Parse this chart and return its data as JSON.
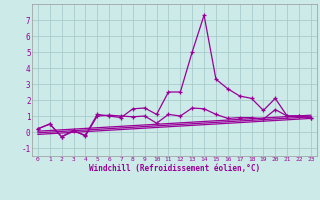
{
  "xlabel": "Windchill (Refroidissement éolien,°C)",
  "background_color": "#cceae8",
  "grid_color": "#aacccc",
  "line_color": "#990099",
  "xlim": [
    -0.5,
    23.5
  ],
  "ylim": [
    -1.5,
    8.0
  ],
  "yticks": [
    -1,
    0,
    1,
    2,
    3,
    4,
    5,
    6,
    7
  ],
  "xticks": [
    0,
    1,
    2,
    3,
    4,
    5,
    6,
    7,
    8,
    9,
    10,
    11,
    12,
    13,
    14,
    15,
    16,
    17,
    18,
    19,
    20,
    21,
    22,
    23
  ],
  "series1_x": [
    0,
    1,
    2,
    3,
    4,
    5,
    6,
    7,
    8,
    9,
    10,
    11,
    12,
    13,
    14,
    15,
    16,
    17,
    18,
    19,
    20,
    21,
    22,
    23
  ],
  "series1_y": [
    0.2,
    0.5,
    -0.3,
    0.05,
    -0.2,
    1.1,
    1.0,
    0.9,
    1.45,
    1.5,
    1.1,
    2.5,
    2.5,
    5.0,
    7.3,
    3.3,
    2.7,
    2.25,
    2.1,
    1.35,
    2.1,
    1.0,
    1.0,
    0.9
  ],
  "series2_x": [
    0,
    1,
    2,
    3,
    4,
    5,
    6,
    7,
    8,
    9,
    10,
    11,
    12,
    13,
    14,
    15,
    16,
    17,
    18,
    19,
    20,
    21,
    22,
    23
  ],
  "series2_y": [
    0.2,
    0.5,
    -0.3,
    0.1,
    -0.25,
    1.0,
    1.05,
    1.0,
    0.95,
    1.0,
    0.55,
    1.1,
    1.0,
    1.5,
    1.45,
    1.1,
    0.85,
    0.9,
    0.9,
    0.8,
    1.4,
    1.0,
    1.0,
    0.9
  ],
  "trend1_x": [
    0,
    23
  ],
  "trend1_y": [
    0.05,
    1.05
  ],
  "trend2_x": [
    0,
    23
  ],
  "trend2_y": [
    -0.05,
    0.95
  ],
  "trend3_x": [
    0,
    23
  ],
  "trend3_y": [
    -0.15,
    0.85
  ]
}
